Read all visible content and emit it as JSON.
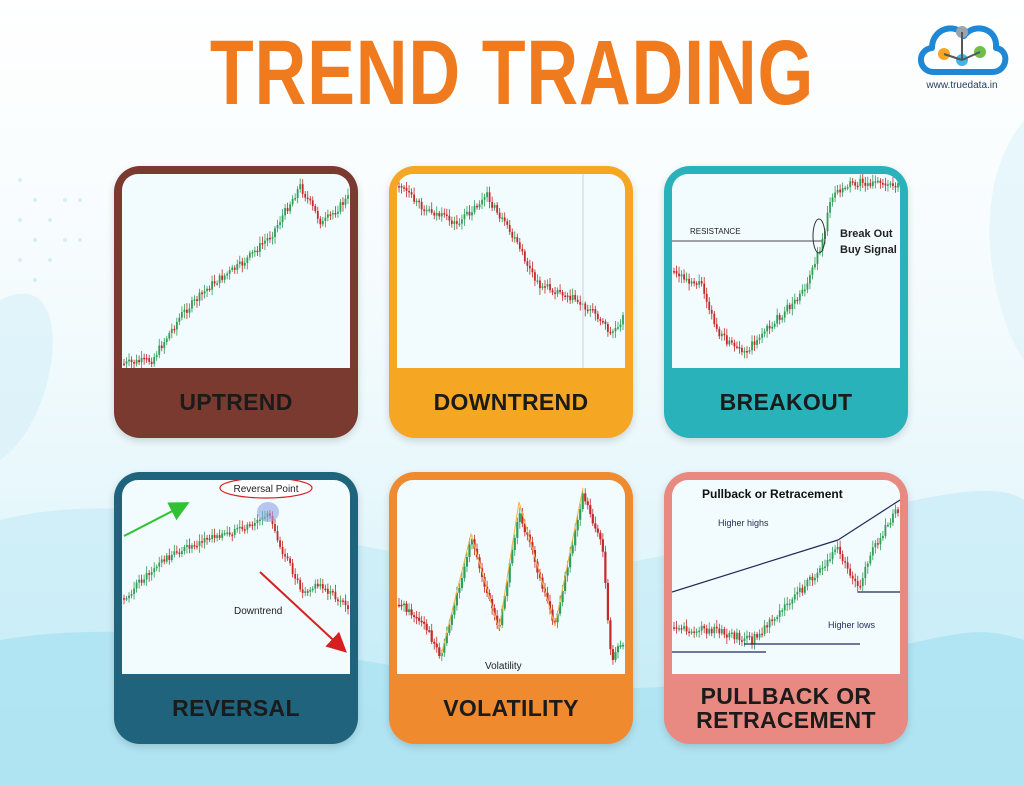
{
  "title": "TREND TRADING",
  "logo": {
    "name": "truedata-cloud-logo",
    "url": "www.truedata.in"
  },
  "colors": {
    "title": "#f07a1e",
    "uptrend": "#7b3a30",
    "downtrend": "#f5a623",
    "breakout": "#2ab2bb",
    "reversal": "#1f637d",
    "volatility": "#ef8a2f",
    "pullback": "#e98a82",
    "candle_up": "#2e9e55",
    "candle_down": "#c62828"
  },
  "cards": [
    {
      "id": "uptrend",
      "label": "UPTREND",
      "annotations": {}
    },
    {
      "id": "downtrend",
      "label": "DOWNTREND",
      "annotations": {}
    },
    {
      "id": "breakout",
      "label": "BREAKOUT",
      "annotations": {
        "resistance": "RESISTANCE",
        "breakout_line1": "Break Out",
        "breakout_line2": "Buy Signal"
      }
    },
    {
      "id": "reversal",
      "label": "REVERSAL",
      "annotations": {
        "reversal_point": "Reversal Point",
        "downtrend": "Downtrend"
      }
    },
    {
      "id": "volatility",
      "label": "VOLATILITY",
      "annotations": {
        "volatility": "Volatility"
      }
    },
    {
      "id": "pullback",
      "label_line1": "PULLBACK OR",
      "label_line2": "RETRACEMENT",
      "annotations": {
        "heading": "Pullback or Retracement",
        "higher_highs": "Higher highs",
        "higher_lows": "Higher lows"
      }
    }
  ]
}
